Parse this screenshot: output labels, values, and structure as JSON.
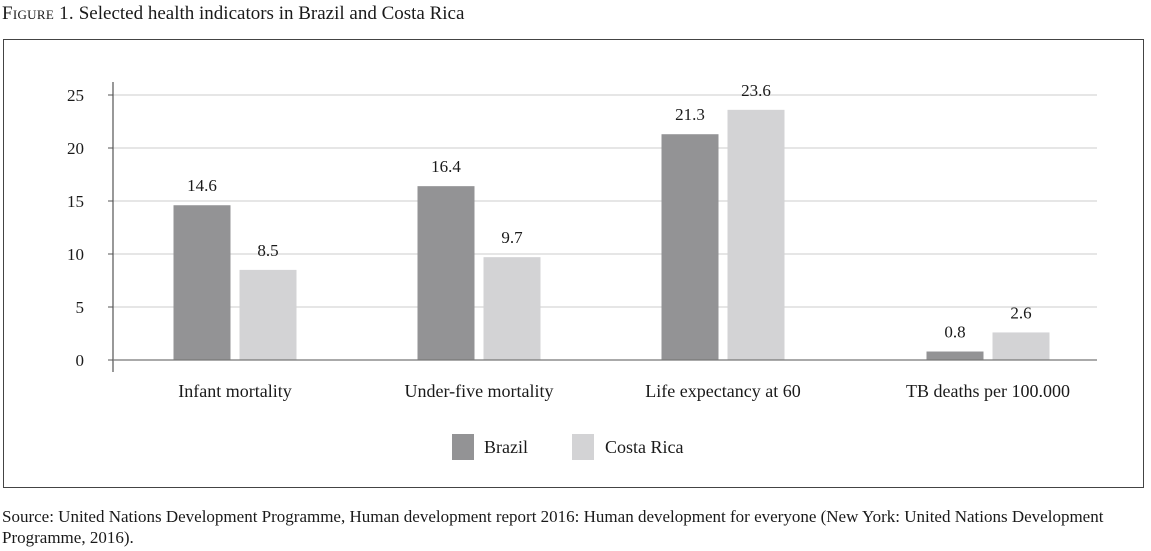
{
  "figure": {
    "label": "Figure 1.",
    "title": "Selected health indicators in Brazil and Costa Rica"
  },
  "source": "Source: United Nations Development Programme, Human development report 2016: Human development for everyone (New York: United Nations Development Programme, 2016).",
  "chart_data": {
    "type": "bar",
    "title": "",
    "xlabel": "",
    "ylabel": "",
    "categories": [
      "Infant mortality",
      "Under-five mortality",
      "Life expectancy at 60",
      "TB deaths per 100.000"
    ],
    "series": [
      {
        "name": "Brazil",
        "values": [
          14.6,
          16.4,
          21.3,
          0.8
        ],
        "labels": [
          "14.6",
          "16.4",
          "21.3",
          "0.8"
        ],
        "color": "#939395"
      },
      {
        "name": "Costa Rica",
        "values": [
          8.5,
          9.7,
          23.6,
          2.6
        ],
        "labels": [
          "8.5",
          "9.7",
          "23.6",
          "2.6"
        ],
        "color": "#d3d3d5"
      }
    ],
    "ylim": [
      0,
      25
    ],
    "yticks": [
      0,
      5,
      10,
      15,
      20,
      25
    ],
    "ytick_labels": [
      "0",
      "5",
      "10",
      "15",
      "20",
      "25"
    ],
    "grid": true,
    "grid_color": "#cccccc",
    "legend_position": "bottom"
  }
}
